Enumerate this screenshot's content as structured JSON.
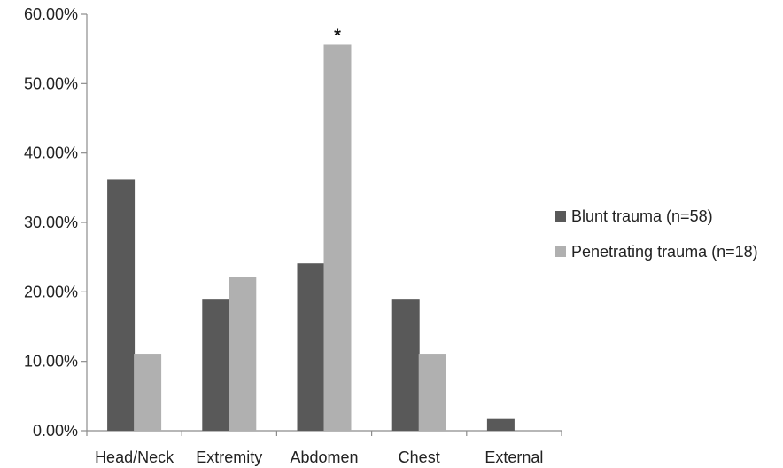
{
  "chart_data": {
    "type": "bar",
    "categories": [
      "Head/Neck",
      "Extremity",
      "Abdomen",
      "Chest",
      "External"
    ],
    "series": [
      {
        "name": "Blunt trauma (n=58)",
        "values": [
          36.2,
          19.0,
          24.1,
          19.0,
          1.7
        ],
        "color": "#595959"
      },
      {
        "name": "Penetrating trauma (n=18)",
        "values": [
          11.1,
          22.2,
          55.6,
          11.1,
          0.0
        ],
        "color": "#b0b0b0"
      }
    ],
    "y_ticks": [
      "0.00%",
      "10.00%",
      "20.00%",
      "30.00%",
      "40.00%",
      "50.00%",
      "60.00%"
    ],
    "ylim": [
      0,
      60
    ],
    "grid": false,
    "legend_position": "right",
    "annotations": [
      {
        "text": "*",
        "category": "Abdomen",
        "series": 1
      }
    ]
  }
}
